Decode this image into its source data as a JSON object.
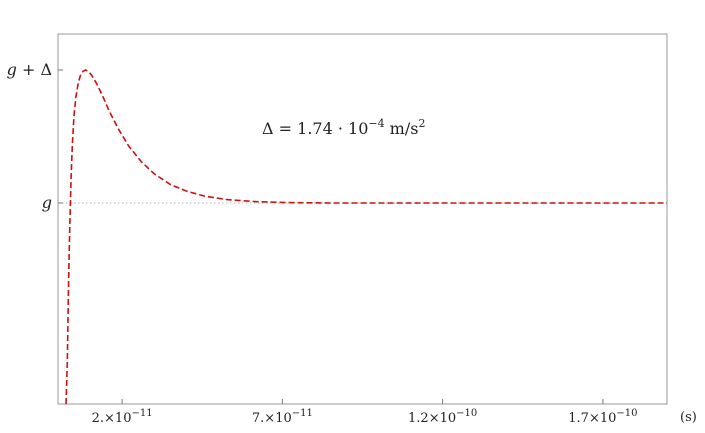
{
  "chart_data": {
    "type": "line",
    "title": "",
    "xlabel": "(s)",
    "ylabel": "",
    "xlim": [
      0,
      1.9e-10
    ],
    "x_ticks": [
      {
        "value": 2e-11,
        "mantissa": "2.",
        "exp": "-11"
      },
      {
        "value": 7e-11,
        "mantissa": "7.",
        "exp": "-11"
      },
      {
        "value": 1.2e-10,
        "mantissa": "1.2",
        "exp": "-10"
      },
      {
        "value": 1.7e-10,
        "mantissa": "1.7",
        "exp": "-10"
      }
    ],
    "y_ticks": [
      {
        "level": "g+Delta",
        "label_main": "g + ",
        "label_sym": "Δ"
      },
      {
        "level": "g",
        "label_main": "g",
        "label_sym": ""
      }
    ],
    "reference_line": {
      "level": "g",
      "style": "dotted",
      "color": "#b0b0b0"
    },
    "annotation": {
      "prefix": "Δ = 1.74 · 10",
      "exponent": "−4",
      "unit": " m/s",
      "unit_exp": "2"
    },
    "series": [
      {
        "style": "dashed",
        "color": "#cc1111",
        "points_rel": [
          [
            2.5e-12,
            -1.8
          ],
          [
            2.9e-12,
            -1.2
          ],
          [
            3.3e-12,
            -0.6
          ],
          [
            3.7e-12,
            -0.15
          ],
          [
            4.1e-12,
            0.2
          ],
          [
            4.5e-12,
            0.45
          ],
          [
            5e-12,
            0.66
          ],
          [
            5.6e-12,
            0.8
          ],
          [
            6.3e-12,
            0.9
          ],
          [
            7e-12,
            0.96
          ],
          [
            7.8e-12,
            0.99
          ],
          [
            8.6e-12,
            1.0
          ],
          [
            9.5e-12,
            0.99
          ],
          [
            1.05e-11,
            0.96
          ],
          [
            1.2e-11,
            0.9
          ],
          [
            1.4e-11,
            0.8
          ],
          [
            1.6e-11,
            0.69
          ],
          [
            1.9e-11,
            0.55
          ],
          [
            2.2e-11,
            0.43
          ],
          [
            2.6e-11,
            0.31
          ],
          [
            3e-11,
            0.22
          ],
          [
            3.5e-11,
            0.14
          ],
          [
            4e-11,
            0.09
          ],
          [
            4.6e-11,
            0.05
          ],
          [
            5.3e-11,
            0.025
          ],
          [
            6.2e-11,
            0.01
          ],
          [
            7.2e-11,
            0.003
          ],
          [
            8.5e-11,
            0.0
          ],
          [
            1e-10,
            0.0
          ],
          [
            1.3e-10,
            0.0
          ],
          [
            1.6e-10,
            0.0
          ],
          [
            1.9e-10,
            0.0
          ]
        ]
      }
    ],
    "y_scale_note": "values are (a - g)/Δ"
  }
}
